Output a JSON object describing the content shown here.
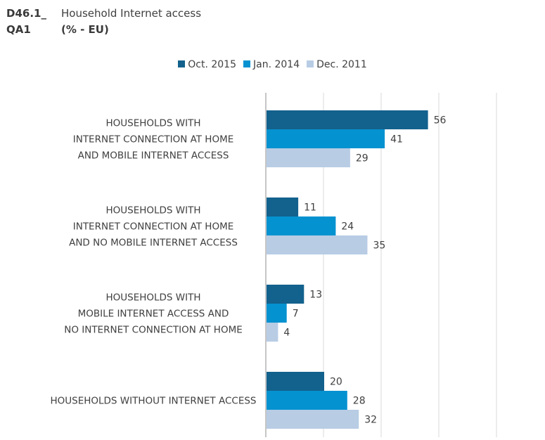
{
  "header": {
    "code": "D46.1_",
    "title": "Household Internet access",
    "question": "QA1",
    "subtitle": "(% - EU)"
  },
  "colors": {
    "oct_2015": "#13618d",
    "jan_2014": "#0592d0",
    "dec_2011": "#b8cce4",
    "gridline": "#d9d9d9",
    "axis": "#8c8c8c"
  },
  "legend": {
    "items": [
      {
        "label": "Oct. 2015",
        "color": "#13618d"
      },
      {
        "label": "Jan. 2014",
        "color": "#0592d0"
      },
      {
        "label": "Dec. 2011",
        "color": "#b8cce4"
      }
    ],
    "placement": "top"
  },
  "chart_data": {
    "type": "bar",
    "orientation": "horizontal",
    "title": "Household Internet access",
    "subtitle": "(% - EU)",
    "xlim": [
      0,
      100
    ],
    "grid": true,
    "categories": [
      [
        "HOUSEHOLDS WITH",
        "INTERNET CONNECTION AT HOME",
        "AND MOBILE INTERNET ACCESS"
      ],
      [
        "HOUSEHOLDS WITH",
        "INTERNET CONNECTION AT HOME",
        "AND NO MOBILE INTERNET ACCESS"
      ],
      [
        "HOUSEHOLDS WITH",
        "MOBILE INTERNET ACCESS AND",
        "NO INTERNET CONNECTION AT HOME"
      ],
      [
        "HOUSEHOLDS WITHOUT INTERNET ACCESS"
      ]
    ],
    "series": [
      {
        "name": "Oct. 2015",
        "color": "#13618d",
        "values": [
          56,
          11,
          13,
          20
        ]
      },
      {
        "name": "Jan. 2014",
        "color": "#0592d0",
        "values": [
          41,
          24,
          7,
          28
        ]
      },
      {
        "name": "Dec. 2011",
        "color": "#b8cce4",
        "values": [
          29,
          35,
          4,
          32
        ]
      }
    ]
  }
}
